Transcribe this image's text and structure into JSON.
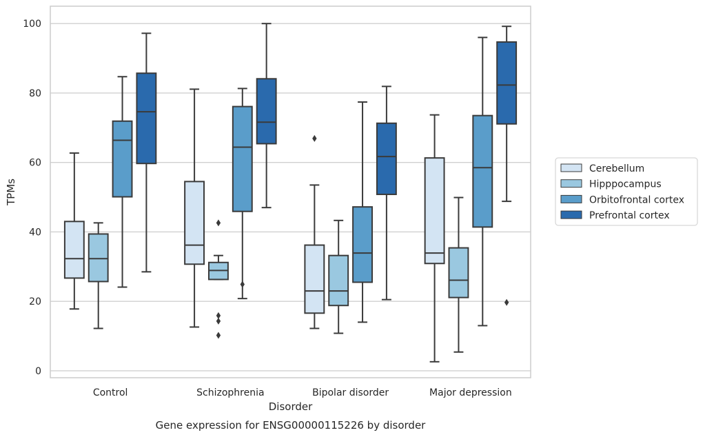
{
  "chart_data": {
    "type": "box",
    "xlabel": "Disorder",
    "ylabel": "TPMs",
    "caption": "Gene expression for ENSG00000115226 by disorder",
    "ylim": [
      -2,
      105
    ],
    "yticks": [
      0,
      20,
      40,
      60,
      80,
      100
    ],
    "grid": true,
    "legend_position": "right",
    "categories": [
      "Control",
      "Schizophrenia",
      "Bipolar disorder",
      "Major depression"
    ],
    "series": [
      {
        "name": "Cerebellum",
        "color": "#d3e4f3",
        "boxes": [
          {
            "whisker_low": 17.8,
            "q1": 26.7,
            "median": 32.3,
            "q3": 43.0,
            "whisker_high": 62.7,
            "outliers": []
          },
          {
            "whisker_low": 12.6,
            "q1": 30.7,
            "median": 36.2,
            "q3": 54.5,
            "whisker_high": 81.1,
            "outliers": []
          },
          {
            "whisker_low": 12.2,
            "q1": 16.6,
            "median": 23.0,
            "q3": 36.2,
            "whisker_high": 53.5,
            "outliers": [
              66.9
            ]
          },
          {
            "whisker_low": 2.6,
            "q1": 30.9,
            "median": 33.9,
            "q3": 61.3,
            "whisker_high": 73.7,
            "outliers": []
          }
        ]
      },
      {
        "name": "Hipppocampus",
        "color": "#9ac8e0",
        "boxes": [
          {
            "whisker_low": 12.2,
            "q1": 25.7,
            "median": 32.3,
            "q3": 39.4,
            "whisker_high": 42.6,
            "outliers": []
          },
          {
            "whisker_low": 26.3,
            "q1": 26.3,
            "median": 28.9,
            "q3": 31.2,
            "whisker_high": 33.2,
            "outliers": [
              42.6,
              15.9,
              14.3,
              10.2
            ]
          },
          {
            "whisker_low": 10.8,
            "q1": 18.8,
            "median": 23.0,
            "q3": 33.2,
            "whisker_high": 43.3,
            "outliers": []
          },
          {
            "whisker_low": 5.4,
            "q1": 21.1,
            "median": 26.1,
            "q3": 35.4,
            "whisker_high": 49.9,
            "outliers": []
          }
        ]
      },
      {
        "name": "Orbitofrontal cortex",
        "color": "#5a9dca",
        "boxes": [
          {
            "whisker_low": 24.1,
            "q1": 50.1,
            "median": 66.4,
            "q3": 71.9,
            "whisker_high": 84.7,
            "outliers": []
          },
          {
            "whisker_low": 20.8,
            "q1": 45.9,
            "median": 64.4,
            "q3": 76.1,
            "whisker_high": 81.3,
            "outliers": [
              24.9
            ]
          },
          {
            "whisker_low": 14.0,
            "q1": 25.5,
            "median": 33.9,
            "q3": 47.2,
            "whisker_high": 77.4,
            "outliers": []
          },
          {
            "whisker_low": 13.0,
            "q1": 41.4,
            "median": 58.5,
            "q3": 73.5,
            "whisker_high": 96.0,
            "outliers": []
          }
        ]
      },
      {
        "name": "Prefrontal cortex",
        "color": "#2a6aad",
        "boxes": [
          {
            "whisker_low": 28.5,
            "q1": 59.7,
            "median": 74.6,
            "q3": 85.7,
            "whisker_high": 97.2,
            "outliers": []
          },
          {
            "whisker_low": 47.0,
            "q1": 65.4,
            "median": 71.6,
            "q3": 84.1,
            "whisker_high": 100.0,
            "outliers": []
          },
          {
            "whisker_low": 20.5,
            "q1": 50.8,
            "median": 61.7,
            "q3": 71.3,
            "whisker_high": 81.9,
            "outliers": []
          },
          {
            "whisker_low": 48.8,
            "q1": 71.1,
            "median": 82.3,
            "q3": 94.7,
            "whisker_high": 99.2,
            "outliers": [
              19.7
            ]
          }
        ]
      }
    ]
  }
}
